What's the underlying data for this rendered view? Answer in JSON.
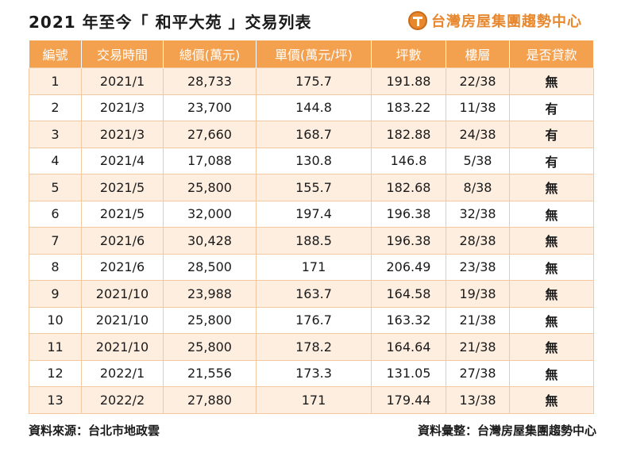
{
  "title": "2021 年至今「 和平大苑 」交易列表",
  "brand": {
    "icon": "orange-circle-T-logo",
    "name": "台灣房屋集團趨勢中心",
    "accent_color": "#e7882f"
  },
  "table": {
    "header_color": "#f4a14f",
    "row_tint_color": "#fdeee0",
    "headers": [
      "編號",
      "交易時間",
      "總價(萬元)",
      "單價(萬元/坪)",
      "坪數",
      "樓層",
      "是否貸款"
    ],
    "rows": [
      [
        "1",
        "2021/1",
        "28,733",
        "175.7",
        "191.88",
        "22/38",
        "無"
      ],
      [
        "2",
        "2021/3",
        "23,700",
        "144.8",
        "183.22",
        "11/38",
        "有"
      ],
      [
        "3",
        "2021/3",
        "27,660",
        "168.7",
        "182.88",
        "24/38",
        "有"
      ],
      [
        "4",
        "2021/4",
        "17,088",
        "130.8",
        "146.8",
        "5/38",
        "有"
      ],
      [
        "5",
        "2021/5",
        "25,800",
        "155.7",
        "182.68",
        "8/38",
        "無"
      ],
      [
        "6",
        "2021/5",
        "32,000",
        "197.4",
        "196.38",
        "32/38",
        "無"
      ],
      [
        "7",
        "2021/6",
        "30,428",
        "188.5",
        "196.38",
        "28/38",
        "無"
      ],
      [
        "8",
        "2021/6",
        "28,500",
        "171",
        "206.49",
        "23/38",
        "無"
      ],
      [
        "9",
        "2021/10",
        "23,988",
        "163.7",
        "164.58",
        "19/38",
        "無"
      ],
      [
        "10",
        "2021/10",
        "25,800",
        "176.7",
        "163.32",
        "21/38",
        "無"
      ],
      [
        "11",
        "2021/10",
        "25,800",
        "178.2",
        "164.64",
        "21/38",
        "無"
      ],
      [
        "12",
        "2022/1",
        "21,556",
        "173.3",
        "131.05",
        "27/38",
        "無"
      ],
      [
        "13",
        "2022/2",
        "27,880",
        "171",
        "179.44",
        "13/38",
        "無"
      ]
    ]
  },
  "footer": {
    "source": "資料來源：台北市地政雲",
    "compiled": "資料彙整：台灣房屋集團趨勢中心"
  }
}
